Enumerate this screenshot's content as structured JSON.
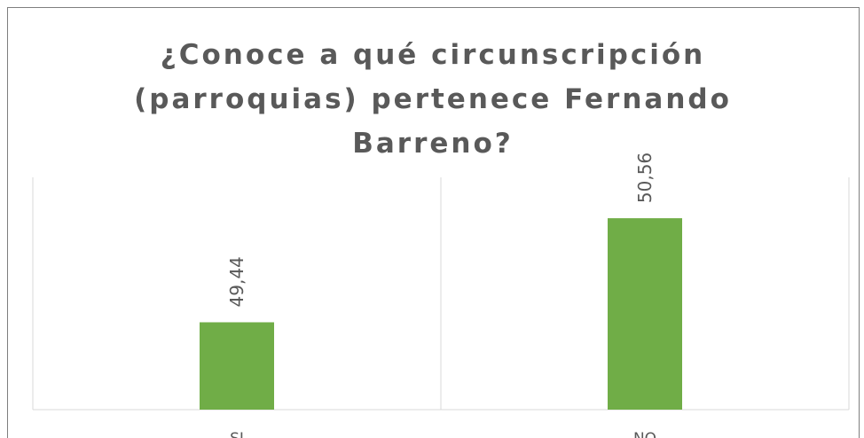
{
  "chart_data": {
    "type": "bar",
    "title": "¿Conoce a qué circunscripción (parroquias) pertenece Fernando Barreno?",
    "categories": [
      "SI",
      "NO"
    ],
    "values": [
      49.44,
      50.56
    ],
    "value_labels": [
      "49,44",
      "50,56"
    ],
    "color": "#70ad47",
    "ylim": [
      48.5,
      51
    ]
  }
}
